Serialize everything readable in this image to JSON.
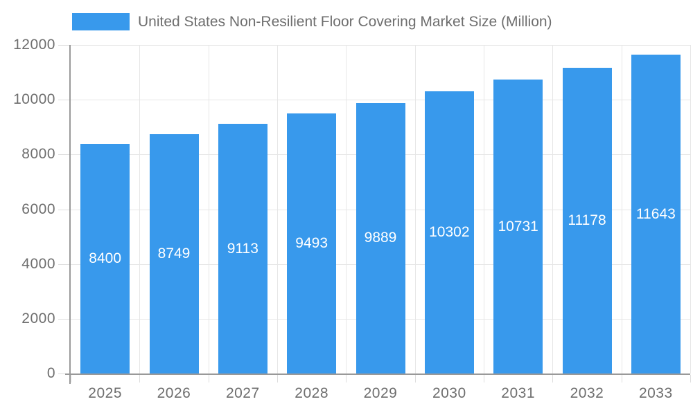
{
  "legend": {
    "label": "United States Non-Resilient Floor Covering Market Size (Million)"
  },
  "chart_data": {
    "type": "bar",
    "title": "United States Non-Resilient Floor Covering Market Size (Million)",
    "categories": [
      "2025",
      "2026",
      "2027",
      "2028",
      "2029",
      "2030",
      "2031",
      "2032",
      "2033"
    ],
    "series": [
      {
        "name": "United States Non-Resilient Floor Covering Market Size (Million)",
        "values": [
          8400,
          8749,
          9113,
          9493,
          9889,
          10302,
          10731,
          11178,
          11643
        ]
      }
    ],
    "xlabel": "",
    "ylabel": "",
    "ylim": [
      0,
      12000
    ],
    "yticks": [
      0,
      2000,
      4000,
      6000,
      8000,
      10000,
      12000
    ],
    "grid": true,
    "bar_labels": true,
    "legend_position": "top",
    "colors": {
      "bar": "#3899EC",
      "bar_label_text": "#FFFFFF",
      "grid_line": "#E6E6E6",
      "tick_line": "#DDDDDD",
      "axis_line": "#999999",
      "axis_text": "#6E6E6E",
      "legend_text": "#6E6E6E",
      "background": "#FFFFFF"
    }
  }
}
